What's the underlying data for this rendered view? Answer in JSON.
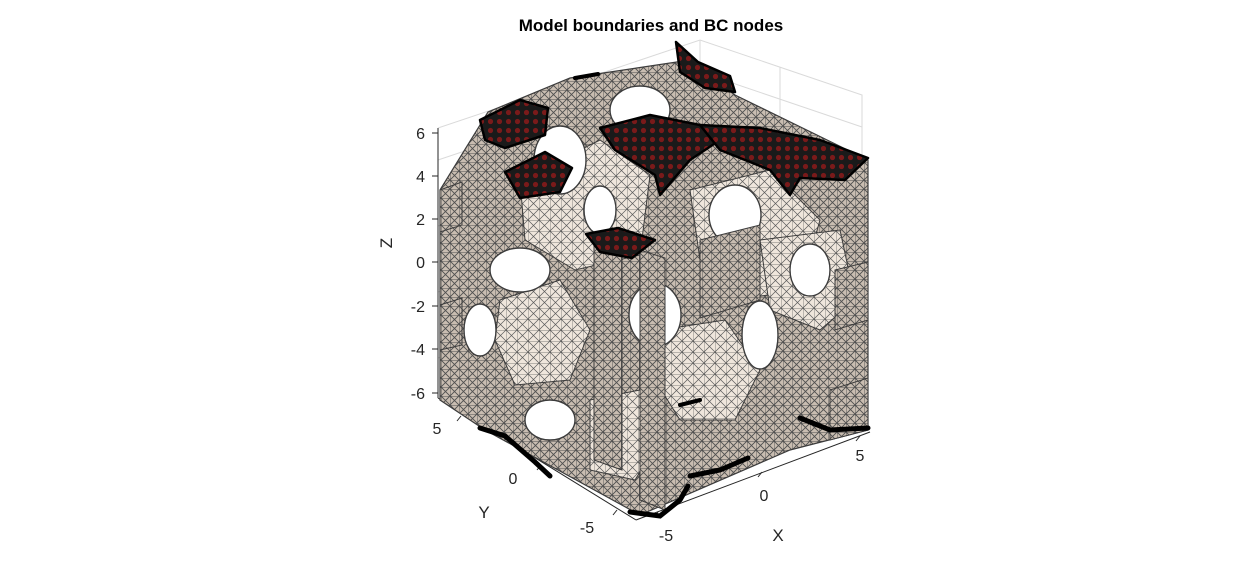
{
  "figure": {
    "title": "Model boundaries and BC nodes",
    "axes": {
      "x": {
        "label": "X",
        "ticks": [
          "-5",
          "0",
          "5"
        ]
      },
      "y": {
        "label": "Y",
        "ticks": [
          "-5",
          "0",
          "5"
        ]
      },
      "z": {
        "label": "Z",
        "ticks": [
          "6",
          "4",
          "2",
          "0",
          "-2",
          "-4",
          "-6"
        ]
      }
    },
    "colors": {
      "mesh_face": "#c9bdb1",
      "mesh_edge": "#4a4a4a",
      "bc_node": "#0d0d0d",
      "bc_node_inner": "#7a1a1a",
      "grid": "#d9d9d9"
    }
  }
}
